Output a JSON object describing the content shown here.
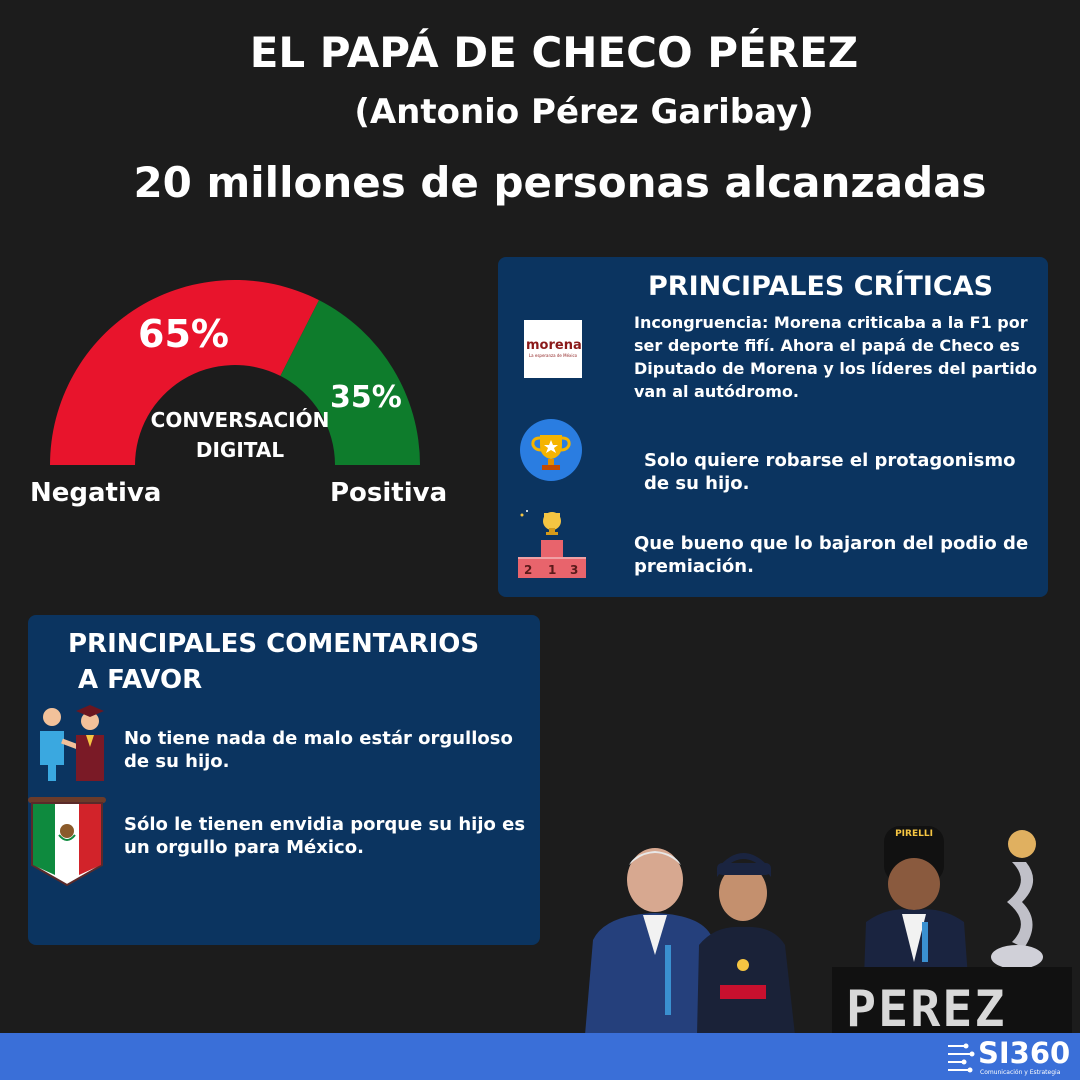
{
  "header": {
    "title": "EL PAPÁ DE CHECO PÉREZ",
    "subtitle": "(Antonio Pérez Garibay)",
    "reach": "20 millones de personas alcanzadas"
  },
  "gauge": {
    "negative_pct": 65,
    "positive_pct": 35,
    "negative_label_value": "65%",
    "positive_label_value": "35%",
    "center_line1": "CONVERSACIÓN",
    "center_line2": "DIGITAL",
    "negative_label": "Negativa",
    "positive_label": "Positiva",
    "negative_color": "#e8142c",
    "positive_color": "#0e7c2c"
  },
  "criticas": {
    "title": "PRINCIPALES CRÍTICAS",
    "items": [
      {
        "icon": "morena-logo-icon",
        "logo_text": "morena",
        "logo_sub": "La esperanza de México",
        "text": "Incongruencia:  Morena criticaba a la F1 por ser deporte fifí. Ahora el papá de Checo es Diputado de Morena y los líderes del partido van al autódromo."
      },
      {
        "icon": "trophy-icon",
        "text": "Solo quiere robarse el protagonismo de su hijo."
      },
      {
        "icon": "podium-icon",
        "podium_numbers": [
          "2",
          "1",
          "3"
        ],
        "text": "Que bueno que lo bajaron del podio de premiación."
      }
    ]
  },
  "favor": {
    "title_line1": "PRINCIPALES COMENTARIOS",
    "title_line2": "A FAVOR",
    "items": [
      {
        "icon": "proud-parent-graduate-icon",
        "text": "No tiene nada de malo estár orgulloso de su hijo."
      },
      {
        "icon": "mexico-flag-icon",
        "text": "Sólo le tienen envidia porque su hijo es un orgullo para México."
      }
    ]
  },
  "photos": {
    "podium_sign": "PEREZ",
    "pirelli": "PIRELLI"
  },
  "brand": {
    "logo": "SI360",
    "logo_sub": "Comunicación y Estrategia",
    "accent": "#3a6fd8"
  }
}
